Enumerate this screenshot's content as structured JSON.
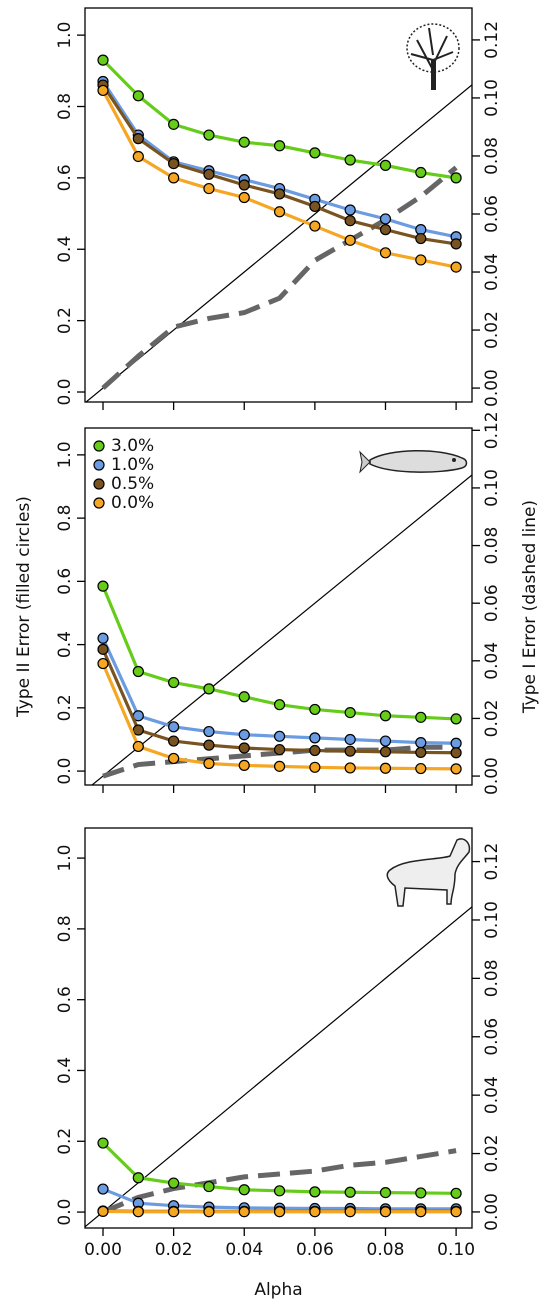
{
  "chart_data": [
    {
      "type": "line",
      "x": [
        0,
        0.01,
        0.02,
        0.03,
        0.04,
        0.05,
        0.06,
        0.07,
        0.08,
        0.09,
        0.1
      ],
      "xlim": [
        -0.0051,
        0.1045
      ],
      "xticks": [
        0,
        0.02,
        0.04,
        0.06,
        0.08,
        0.1
      ],
      "ylim": [
        -0.028,
        1.076
      ],
      "yticks": [
        {
          "value": 0,
          "label": "0.0"
        },
        {
          "value": 0.2,
          "label": "0.2"
        },
        {
          "value": 0.4,
          "label": "0.4"
        },
        {
          "value": 0.6,
          "label": "0.6"
        },
        {
          "value": 0.8,
          "label": "0.8"
        },
        {
          "value": 1,
          "label": "1.0"
        }
      ],
      "y2lim": [
        -0.0048,
        0.131
      ],
      "y2ticks": [
        {
          "value": 0,
          "label": "0.00"
        },
        {
          "value": 0.02,
          "label": "0.02"
        },
        {
          "value": 0.04,
          "label": "0.04"
        },
        {
          "value": 0.06,
          "label": "0.06"
        },
        {
          "value": 0.08,
          "label": "0.08"
        },
        {
          "value": 0.1,
          "label": "0.10"
        },
        {
          "value": 0.12,
          "label": "0.12"
        }
      ],
      "series": [
        {
          "color": "#666666",
          "axis": "y2",
          "dashed": true,
          "values": [
            0,
            0.011,
            0.021,
            0.024,
            0.026,
            0.031,
            0.044,
            0.051,
            0.058,
            0.066,
            0.076
          ]
        },
        {
          "color": "#66cc1a",
          "values": [
            0.93,
            0.83,
            0.75,
            0.72,
            0.7,
            0.69,
            0.67,
            0.65,
            0.635,
            0.615,
            0.6
          ]
        },
        {
          "color": "#6b9be0",
          "values": [
            0.87,
            0.72,
            0.645,
            0.62,
            0.595,
            0.57,
            0.54,
            0.51,
            0.485,
            0.455,
            0.435
          ]
        },
        {
          "color": "#7a5420",
          "values": [
            0.86,
            0.71,
            0.64,
            0.61,
            0.58,
            0.555,
            0.52,
            0.48,
            0.455,
            0.43,
            0.415
          ]
        },
        {
          "color": "#f5a623",
          "values": [
            0.845,
            0.66,
            0.6,
            0.57,
            0.545,
            0.505,
            0.465,
            0.425,
            0.39,
            0.37,
            0.35
          ]
        }
      ]
    },
    {
      "type": "line",
      "x": [
        0,
        0.01,
        0.02,
        0.03,
        0.04,
        0.05,
        0.06,
        0.07,
        0.08,
        0.09,
        0.1
      ],
      "xlim": [
        -0.0051,
        0.1045
      ],
      "xticks": [
        0,
        0.02,
        0.04,
        0.06,
        0.08,
        0.1
      ],
      "ylim": [
        -0.044,
        1.085
      ],
      "yticks": [
        {
          "value": 0,
          "label": "0.0"
        },
        {
          "value": 0.2,
          "label": "0.2"
        },
        {
          "value": 0.4,
          "label": "0.4"
        },
        {
          "value": 0.6,
          "label": "0.6"
        },
        {
          "value": 0.8,
          "label": "0.8"
        },
        {
          "value": 1,
          "label": "1.0"
        }
      ],
      "y2lim": [
        -0.0031,
        0.1208
      ],
      "y2ticks": [
        {
          "value": 0,
          "label": "0.00"
        },
        {
          "value": 0.02,
          "label": "0.02"
        },
        {
          "value": 0.04,
          "label": "0.04"
        },
        {
          "value": 0.06,
          "label": "0.06"
        },
        {
          "value": 0.08,
          "label": "0.08"
        },
        {
          "value": 0.1,
          "label": "0.10"
        },
        {
          "value": 0.12,
          "label": "0.12"
        }
      ],
      "ylabel": "Type II Error (filled circles)",
      "y2label": "Type I Error (dashed line)",
      "legend": "upper left",
      "series": [
        {
          "color": "#666666",
          "axis": "y2",
          "dashed": true,
          "values": [
            0,
            0.004,
            0.005,
            0.006,
            0.007,
            0.008,
            0.009,
            0.009,
            0.009,
            0.01,
            0.01
          ]
        },
        {
          "name": "3.0%",
          "color": "#66cc1a",
          "values": [
            0.585,
            0.315,
            0.28,
            0.26,
            0.235,
            0.21,
            0.195,
            0.185,
            0.175,
            0.17,
            0.165
          ]
        },
        {
          "name": "1.0%",
          "color": "#6b9be0",
          "values": [
            0.42,
            0.175,
            0.14,
            0.125,
            0.115,
            0.11,
            0.105,
            0.1,
            0.095,
            0.09,
            0.088
          ]
        },
        {
          "name": "0.5%",
          "color": "#7a5420",
          "values": [
            0.385,
            0.13,
            0.095,
            0.082,
            0.073,
            0.068,
            0.065,
            0.063,
            0.061,
            0.059,
            0.058
          ]
        },
        {
          "name": "0.0%",
          "color": "#f5a623",
          "values": [
            0.34,
            0.078,
            0.04,
            0.024,
            0.018,
            0.015,
            0.012,
            0.01,
            0.009,
            0.008,
            0.007
          ]
        }
      ]
    },
    {
      "type": "line",
      "x": [
        0,
        0.01,
        0.02,
        0.03,
        0.04,
        0.05,
        0.06,
        0.07,
        0.08,
        0.09,
        0.1
      ],
      "xlim": [
        -0.0051,
        0.1045
      ],
      "xticks": [
        {
          "value": 0,
          "label": "0.00"
        },
        {
          "value": 0.02,
          "label": "0.02"
        },
        {
          "value": 0.04,
          "label": "0.04"
        },
        {
          "value": 0.06,
          "label": "0.06"
        },
        {
          "value": 0.08,
          "label": "0.08"
        },
        {
          "value": 0.1,
          "label": "0.10"
        }
      ],
      "xlabel": "Alpha",
      "ylim": [
        -0.045,
        1.085
      ],
      "yticks": [
        {
          "value": 0,
          "label": "0.0"
        },
        {
          "value": 0.2,
          "label": "0.2"
        },
        {
          "value": 0.4,
          "label": "0.4"
        },
        {
          "value": 0.6,
          "label": "0.6"
        },
        {
          "value": 0.8,
          "label": "0.8"
        },
        {
          "value": 1,
          "label": "1.0"
        }
      ],
      "y2lim": [
        -0.0055,
        0.1315
      ],
      "y2ticks": [
        {
          "value": 0,
          "label": "0.00"
        },
        {
          "value": 0.02,
          "label": "0.02"
        },
        {
          "value": 0.04,
          "label": "0.04"
        },
        {
          "value": 0.06,
          "label": "0.06"
        },
        {
          "value": 0.08,
          "label": "0.08"
        },
        {
          "value": 0.1,
          "label": "0.10"
        },
        {
          "value": 0.12,
          "label": "0.12"
        }
      ],
      "series": [
        {
          "color": "#666666",
          "axis": "y2",
          "dashed": true,
          "values": [
            0,
            0.005,
            0.008,
            0.01,
            0.012,
            0.013,
            0.014,
            0.016,
            0.017,
            0.019,
            0.021
          ]
        },
        {
          "color": "#66cc1a",
          "values": [
            0.195,
            0.097,
            0.082,
            0.072,
            0.063,
            0.06,
            0.057,
            0.056,
            0.055,
            0.054,
            0.053
          ]
        },
        {
          "color": "#6b9be0",
          "values": [
            0.065,
            0.025,
            0.018,
            0.014,
            0.012,
            0.011,
            0.01,
            0.01,
            0.009,
            0.009,
            0.009
          ]
        },
        {
          "color": "#7a5420",
          "values": [
            0.003,
            0.002,
            0.002,
            0.002,
            0.002,
            0.002,
            0.002,
            0.002,
            0.002,
            0.002,
            0.002
          ]
        },
        {
          "color": "#f5a623",
          "values": [
            0.002,
            0.001,
            0.001,
            0.001,
            0.001,
            0.001,
            0.001,
            0.001,
            0.001,
            0.001,
            0.001
          ]
        }
      ]
    }
  ]
}
